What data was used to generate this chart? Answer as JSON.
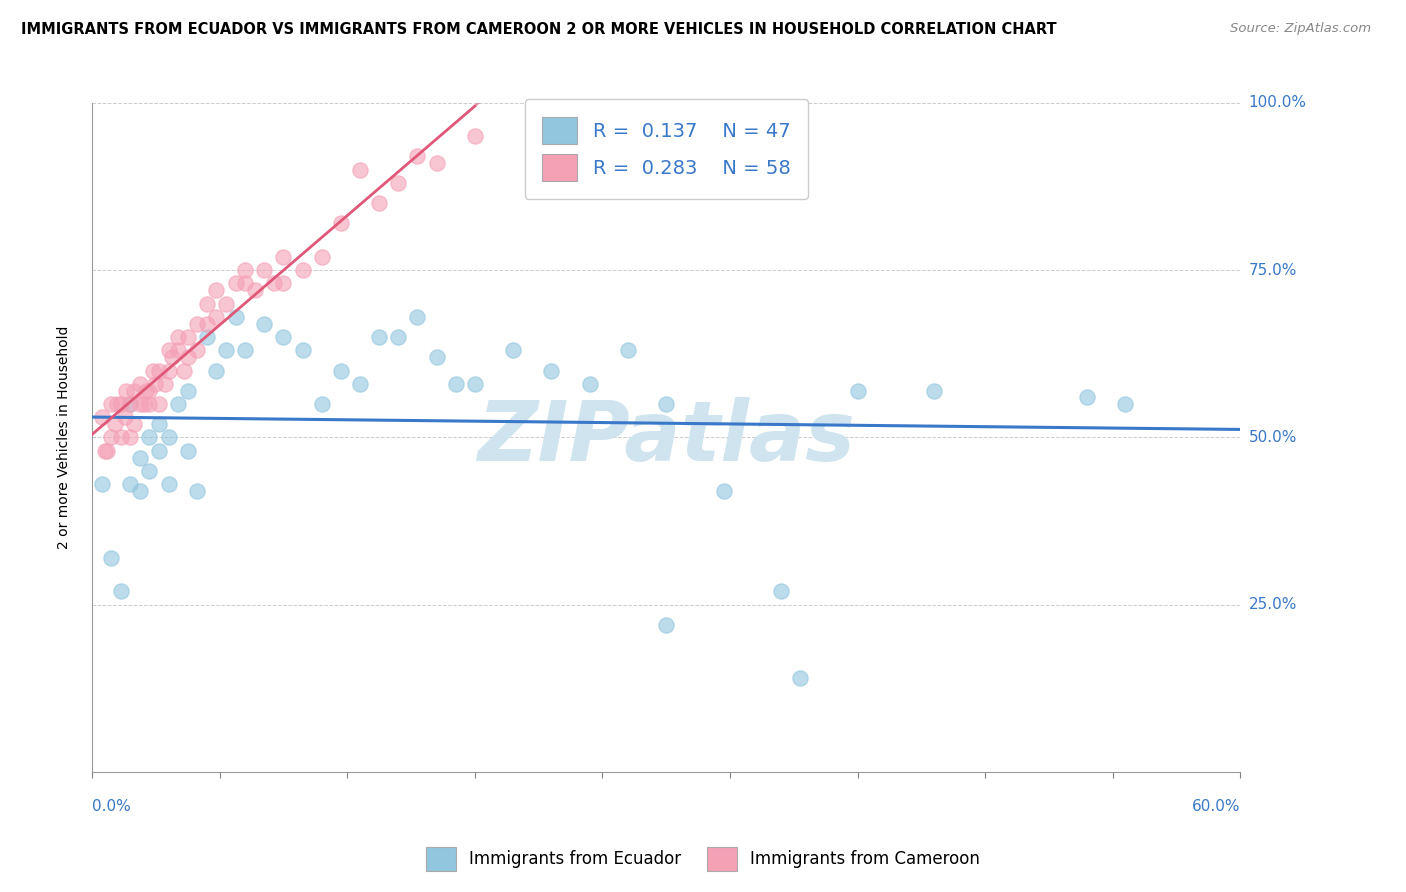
{
  "title": "IMMIGRANTS FROM ECUADOR VS IMMIGRANTS FROM CAMEROON 2 OR MORE VEHICLES IN HOUSEHOLD CORRELATION CHART",
  "source": "Source: ZipAtlas.com",
  "legend_ecuador": "Immigrants from Ecuador",
  "legend_cameroon": "Immigrants from Cameroon",
  "ylabel_label": "2 or more Vehicles in Household",
  "R_ecuador": 0.137,
  "N_ecuador": 47,
  "R_cameroon": 0.283,
  "N_cameroon": 58,
  "ecuador_color": "#92c5de",
  "cameroon_color": "#f4a0b5",
  "ecuador_trend_color": "#3a78c9",
  "cameroon_trend_color": "#e05878",
  "axis_label_color": "#3a78c9",
  "watermark_color": "#d0e4f0",
  "background_color": "#ffffff",
  "xlim": [
    0.0,
    0.6
  ],
  "ylim": [
    0.0,
    1.0
  ],
  "ecuador_x": [
    0.005,
    0.01,
    0.015,
    0.02,
    0.02,
    0.025,
    0.025,
    0.03,
    0.03,
    0.035,
    0.035,
    0.04,
    0.04,
    0.045,
    0.05,
    0.05,
    0.055,
    0.06,
    0.065,
    0.07,
    0.075,
    0.08,
    0.09,
    0.1,
    0.11,
    0.12,
    0.13,
    0.14,
    0.15,
    0.16,
    0.17,
    0.18,
    0.19,
    0.2,
    0.22,
    0.24,
    0.26,
    0.28,
    0.3,
    0.33,
    0.36,
    0.4,
    0.44,
    0.3,
    0.37,
    0.52,
    0.54
  ],
  "ecuador_y": [
    0.43,
    0.32,
    0.27,
    0.43,
    0.55,
    0.42,
    0.47,
    0.5,
    0.45,
    0.48,
    0.52,
    0.5,
    0.43,
    0.55,
    0.48,
    0.57,
    0.42,
    0.65,
    0.6,
    0.63,
    0.68,
    0.63,
    0.67,
    0.65,
    0.63,
    0.55,
    0.6,
    0.58,
    0.65,
    0.65,
    0.68,
    0.62,
    0.58,
    0.58,
    0.63,
    0.6,
    0.58,
    0.63,
    0.55,
    0.42,
    0.27,
    0.57,
    0.57,
    0.22,
    0.14,
    0.56,
    0.55
  ],
  "cameroon_x": [
    0.005,
    0.007,
    0.008,
    0.01,
    0.01,
    0.012,
    0.013,
    0.015,
    0.015,
    0.017,
    0.018,
    0.02,
    0.02,
    0.022,
    0.022,
    0.025,
    0.025,
    0.027,
    0.028,
    0.03,
    0.03,
    0.032,
    0.033,
    0.035,
    0.035,
    0.038,
    0.04,
    0.04,
    0.042,
    0.045,
    0.045,
    0.048,
    0.05,
    0.05,
    0.055,
    0.055,
    0.06,
    0.06,
    0.065,
    0.065,
    0.07,
    0.075,
    0.08,
    0.08,
    0.085,
    0.09,
    0.095,
    0.1,
    0.1,
    0.11,
    0.12,
    0.13,
    0.14,
    0.15,
    0.16,
    0.17,
    0.18,
    0.2
  ],
  "cameroon_y": [
    0.53,
    0.48,
    0.48,
    0.5,
    0.55,
    0.52,
    0.55,
    0.5,
    0.55,
    0.53,
    0.57,
    0.5,
    0.55,
    0.52,
    0.57,
    0.55,
    0.58,
    0.55,
    0.57,
    0.57,
    0.55,
    0.6,
    0.58,
    0.55,
    0.6,
    0.58,
    0.6,
    0.63,
    0.62,
    0.63,
    0.65,
    0.6,
    0.62,
    0.65,
    0.63,
    0.67,
    0.67,
    0.7,
    0.68,
    0.72,
    0.7,
    0.73,
    0.73,
    0.75,
    0.72,
    0.75,
    0.73,
    0.73,
    0.77,
    0.75,
    0.77,
    0.82,
    0.9,
    0.85,
    0.88,
    0.92,
    0.91,
    0.95
  ],
  "ytick_labels": [
    "100.0%",
    "75.0%",
    "50.0%",
    "25.0%"
  ],
  "ytick_vals": [
    1.0,
    0.75,
    0.5,
    0.25
  ]
}
